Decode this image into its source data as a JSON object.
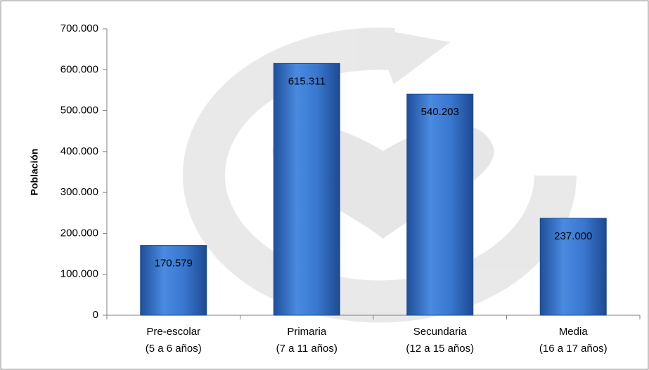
{
  "chart_data": {
    "type": "bar",
    "y_label": "Población",
    "categories": [
      [
        "Pre-escolar",
        "(5 a 6 años)"
      ],
      [
        "Primaria",
        "(7 a 11 años)"
      ],
      [
        "Secundaria",
        "(12 a 15 años)"
      ],
      [
        "Media",
        "(16 a 17 años)"
      ]
    ],
    "values": [
      170579,
      615311,
      540203,
      237000
    ],
    "value_labels": [
      "170.579",
      "615.311",
      "540.203",
      "237.000"
    ],
    "color": "#2f6fc4",
    "ylim": [
      0,
      700000
    ],
    "yticks": [
      0,
      {
        "value": 100000,
        "label": "100.000"
      },
      {
        "value": 200000,
        "label": "200.000"
      },
      {
        "value": 300000,
        "label": "300.000"
      },
      {
        "value": 400000,
        "label": "400.000"
      },
      {
        "value": 500000,
        "label": "500.000"
      },
      {
        "value": 600000,
        "label": "600.000"
      },
      {
        "value": 700000,
        "label": "700.000"
      }
    ]
  }
}
